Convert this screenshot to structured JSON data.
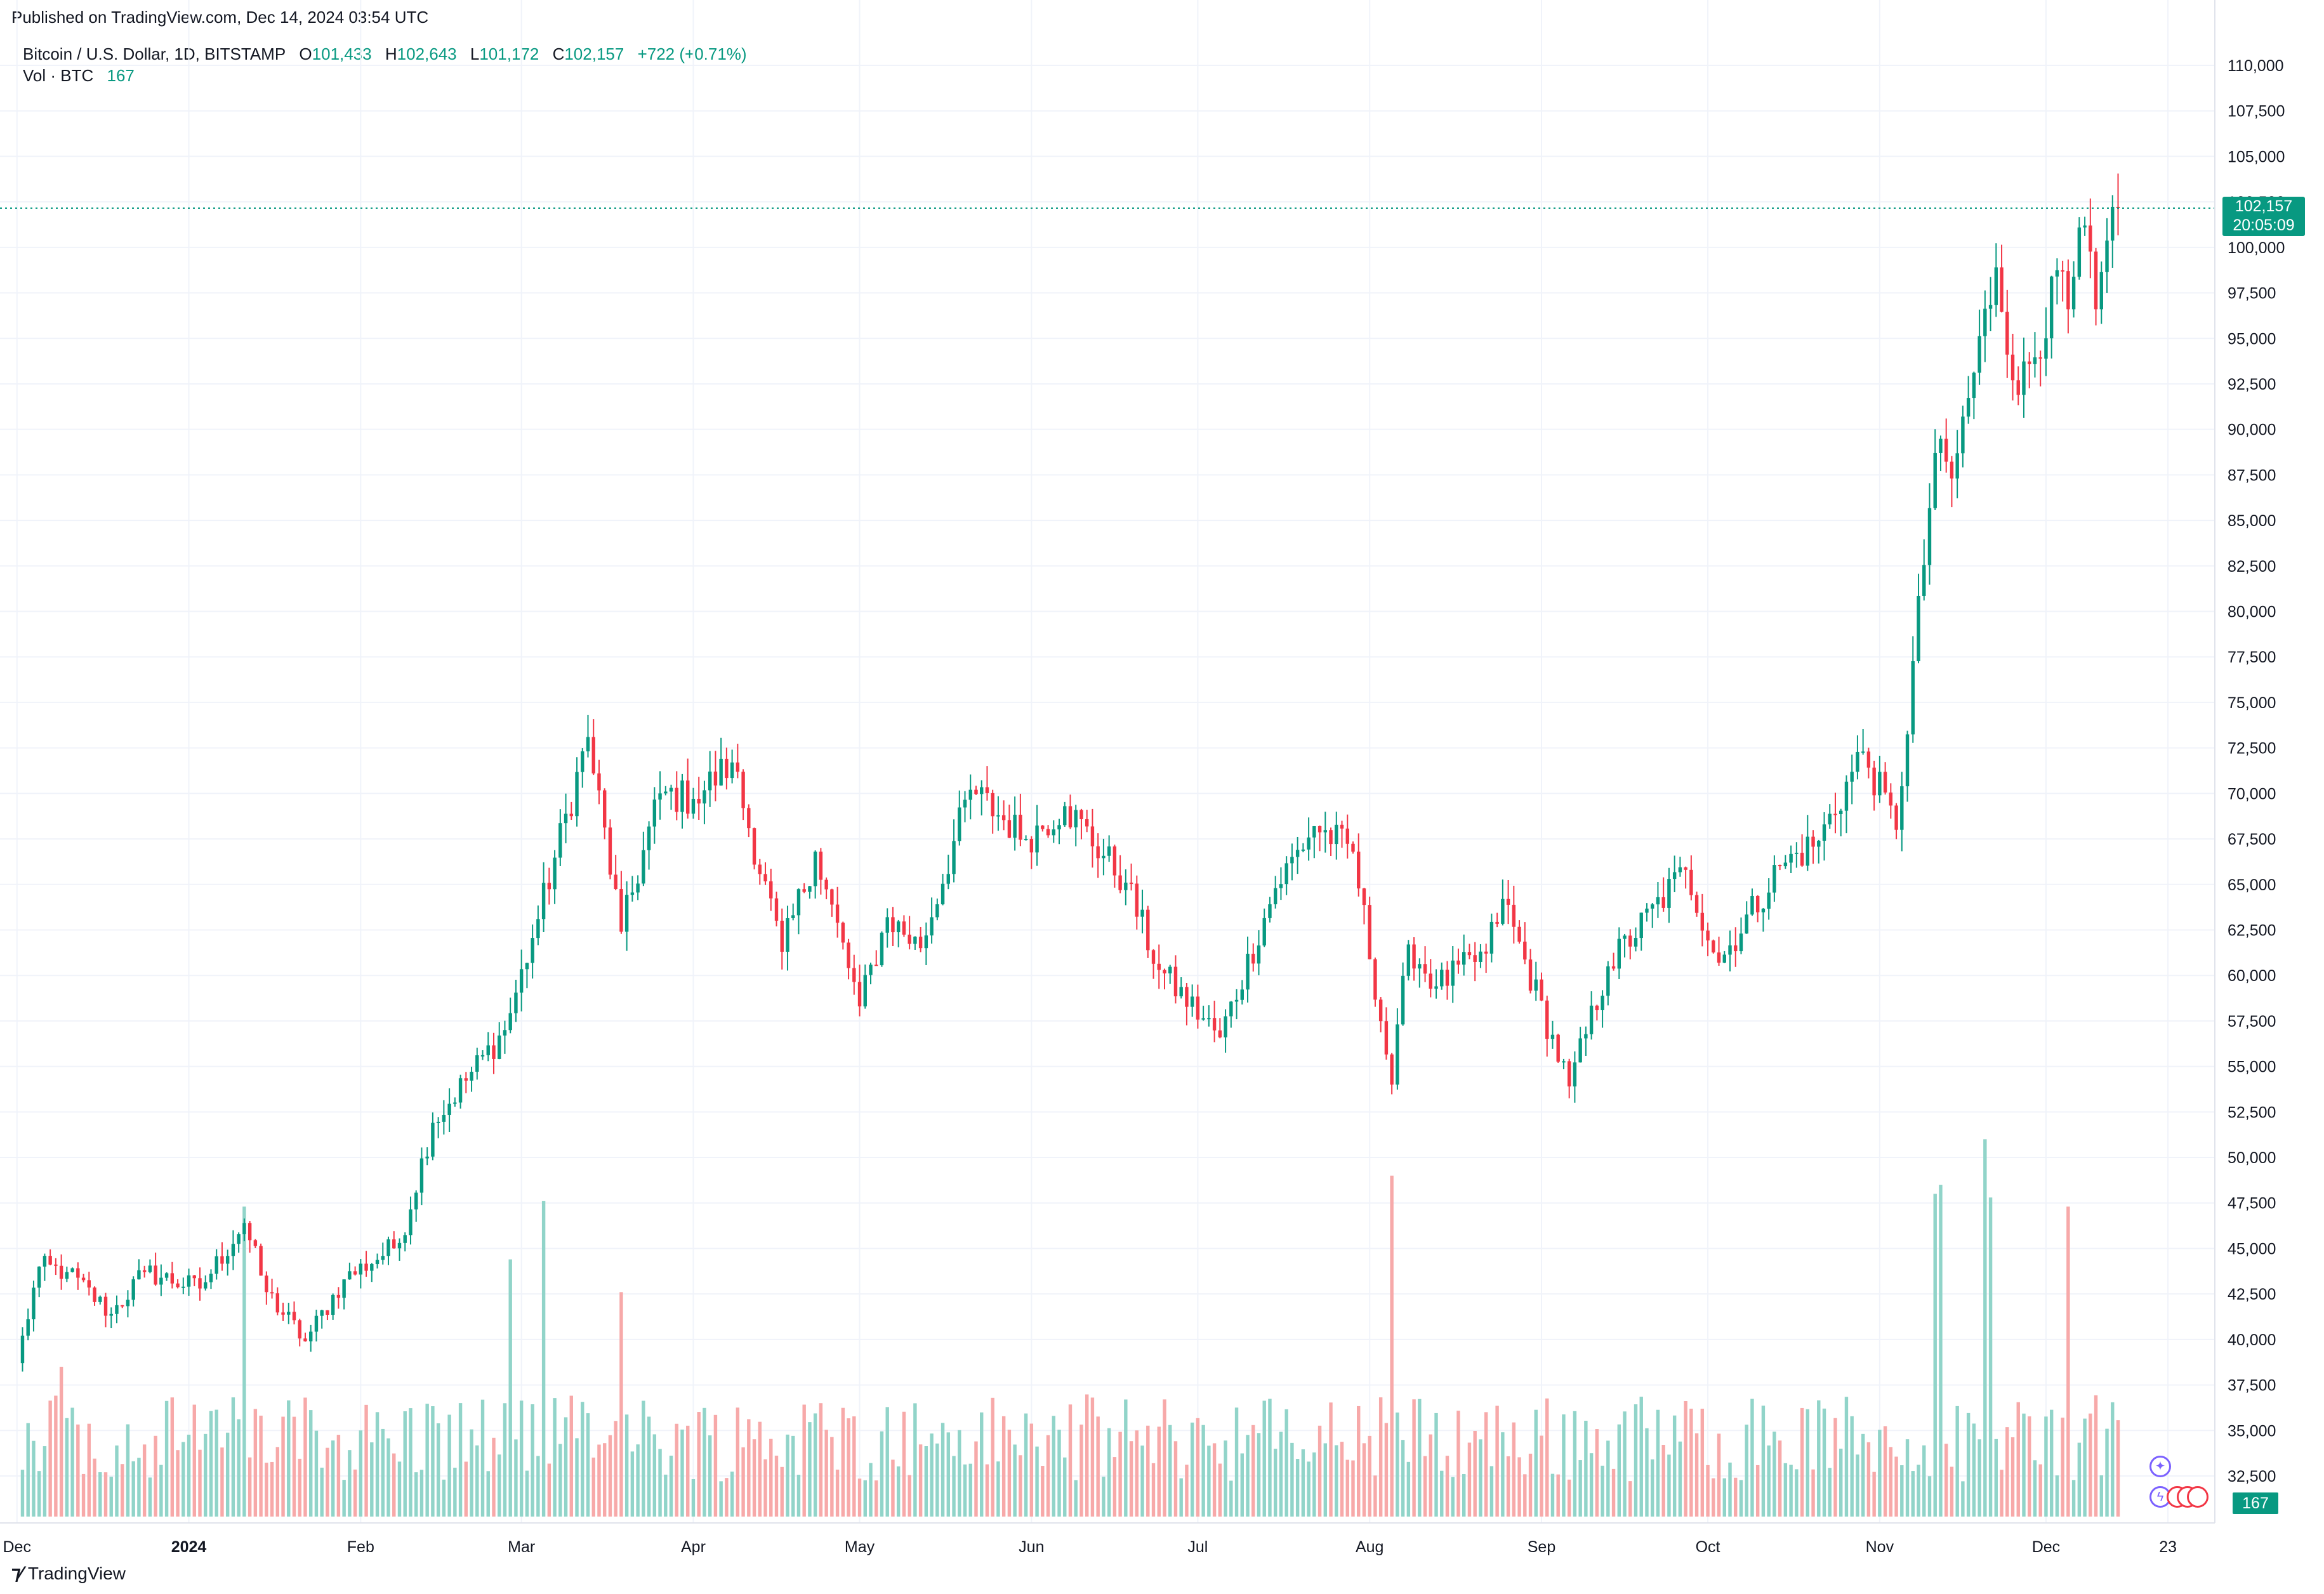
{
  "header": {
    "published": "Published on TradingView.com, Dec 14, 2024 03:54 UTC"
  },
  "legend": {
    "symbol": "Bitcoin / U.S. Dollar, 1D, BITSTAMP",
    "o_label": "O",
    "o_value": "101,433",
    "h_label": "H",
    "h_value": "102,643",
    "l_label": "L",
    "l_value": "101,172",
    "c_label": "C",
    "c_value": "102,157",
    "change": "+722 (+0.71%)",
    "vol_label": "Vol · BTC",
    "vol_value": "167"
  },
  "price_tag": {
    "price": "102,157",
    "countdown": "20:05:09"
  },
  "vol_tag": "167",
  "brand": "TradingView",
  "colors": {
    "up": "#089981",
    "down": "#f23645",
    "up_vol": "#91d4c9",
    "down_vol": "#f7a9a9",
    "grid": "#f0f3fa"
  },
  "chart_data": {
    "type": "candlestick",
    "y_ticks": [
      "32,500",
      "35,000",
      "37,500",
      "40,000",
      "42,500",
      "45,000",
      "47,500",
      "50,000",
      "52,500",
      "55,000",
      "57,500",
      "60,000",
      "62,500",
      "65,000",
      "67,500",
      "70,000",
      "72,500",
      "75,000",
      "77,500",
      "80,000",
      "82,500",
      "85,000",
      "87,500",
      "90,000",
      "92,500",
      "95,000",
      "97,500",
      "100,000",
      "102,500",
      "105,000",
      "107,500",
      "110,000"
    ],
    "x_labels": [
      "Dec",
      "2024",
      "Feb",
      "Mar",
      "Apr",
      "May",
      "Jun",
      "Jul",
      "Aug",
      "Sep",
      "Oct",
      "Nov",
      "Dec",
      "23"
    ],
    "ylim": [
      31000,
      111500
    ],
    "series": [
      {
        "name": "Bitcoin / U.S. Dollar",
        "anchors": [
          [
            "2023-12-01",
            38700
          ],
          [
            "2023-12-05",
            44000
          ],
          [
            "2023-12-10",
            43700
          ],
          [
            "2023-12-18",
            41400
          ],
          [
            "2023-12-24",
            43700
          ],
          [
            "2024-01-03",
            42800
          ],
          [
            "2024-01-11",
            46400
          ],
          [
            "2024-01-15",
            42600
          ],
          [
            "2024-01-22",
            39900
          ],
          [
            "2024-01-29",
            43300
          ],
          [
            "2024-02-08",
            45300
          ],
          [
            "2024-02-14",
            51900
          ],
          [
            "2024-02-27",
            57000
          ],
          [
            "2024-03-04",
            63100
          ],
          [
            "2024-03-13",
            73100
          ],
          [
            "2024-03-19",
            62400
          ],
          [
            "2024-03-26",
            70000
          ],
          [
            "2024-04-01",
            69700
          ],
          [
            "2024-04-08",
            71700
          ],
          [
            "2024-04-17",
            61300
          ],
          [
            "2024-04-23",
            66800
          ],
          [
            "2024-05-01",
            58300
          ],
          [
            "2024-05-06",
            63200
          ],
          [
            "2024-05-12",
            61500
          ],
          [
            "2024-05-21",
            70200
          ],
          [
            "2024-05-31",
            67500
          ],
          [
            "2024-06-07",
            69300
          ],
          [
            "2024-06-18",
            65100
          ],
          [
            "2024-06-24",
            60300
          ],
          [
            "2024-07-05",
            56600
          ],
          [
            "2024-07-15",
            64800
          ],
          [
            "2024-07-22",
            68200
          ],
          [
            "2024-07-29",
            66800
          ],
          [
            "2024-08-05",
            54000
          ],
          [
            "2024-08-08",
            61700
          ],
          [
            "2024-08-13",
            59400
          ],
          [
            "2024-08-22",
            61200
          ],
          [
            "2024-08-25",
            64200
          ],
          [
            "2024-09-06",
            53900
          ],
          [
            "2024-09-13",
            60500
          ],
          [
            "2024-09-27",
            65800
          ],
          [
            "2024-10-03",
            60700
          ],
          [
            "2024-10-14",
            66000
          ],
          [
            "2024-10-21",
            67400
          ],
          [
            "2024-10-29",
            72300
          ],
          [
            "2024-11-04",
            68000
          ],
          [
            "2024-11-11",
            88700
          ],
          [
            "2024-11-14",
            87300
          ],
          [
            "2024-11-22",
            98900
          ],
          [
            "2024-11-26",
            91900
          ],
          [
            "2024-12-04",
            98700
          ],
          [
            "2024-12-05",
            96600
          ],
          [
            "2024-12-08",
            101200
          ],
          [
            "2024-12-10",
            96600
          ],
          [
            "2024-12-14",
            102157
          ]
        ]
      }
    ],
    "last_price": 102157,
    "volume_spikes": [
      [
        "2023-12-09",
        38500
      ],
      [
        "2024-01-11",
        47300
      ],
      [
        "2024-02-28",
        44400
      ],
      [
        "2024-03-05",
        47600
      ],
      [
        "2024-03-19",
        42600
      ],
      [
        "2024-08-05",
        49000
      ],
      [
        "2024-11-11",
        48000
      ],
      [
        "2024-11-12",
        48500
      ],
      [
        "2024-11-20",
        51000
      ],
      [
        "2024-11-21",
        47800
      ],
      [
        "2024-12-05",
        47300
      ]
    ]
  }
}
